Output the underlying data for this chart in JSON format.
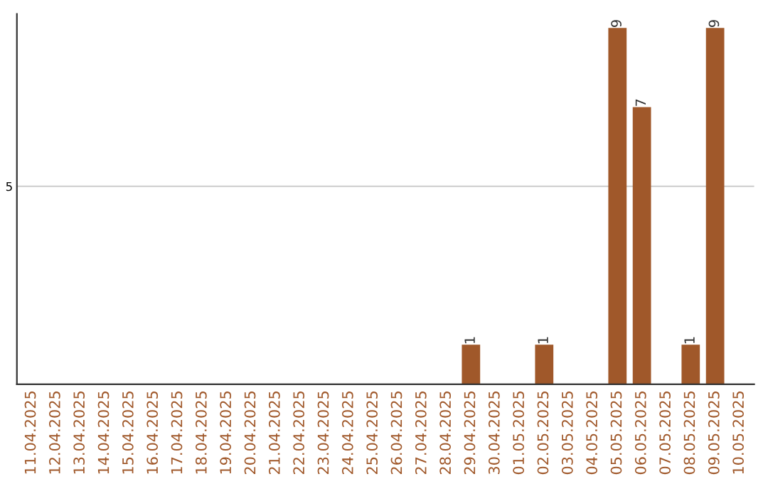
{
  "chart_data": {
    "type": "bar",
    "categories": [
      "11.04.2025",
      "12.04.2025",
      "13.04.2025",
      "14.04.2025",
      "15.04.2025",
      "16.04.2025",
      "17.04.2025",
      "18.04.2025",
      "19.04.2025",
      "20.04.2025",
      "21.04.2025",
      "22.04.2025",
      "23.04.2025",
      "24.04.2025",
      "25.04.2025",
      "26.04.2025",
      "27.04.2025",
      "28.04.2025",
      "29.04.2025",
      "30.04.2025",
      "01.05.2025",
      "02.05.2025",
      "03.05.2025",
      "04.05.2025",
      "05.05.2025",
      "06.05.2025",
      "07.05.2025",
      "08.05.2025",
      "09.05.2025",
      "10.05.2025"
    ],
    "values": [
      null,
      null,
      null,
      null,
      null,
      null,
      null,
      null,
      null,
      null,
      null,
      null,
      null,
      null,
      null,
      null,
      null,
      null,
      1,
      null,
      null,
      1,
      null,
      null,
      9,
      7,
      null,
      1,
      9,
      null
    ],
    "data_labels": true,
    "color": "#a0582a",
    "ylim": [
      0,
      9.35
    ],
    "yticks": [
      5
    ],
    "grid": "y"
  }
}
